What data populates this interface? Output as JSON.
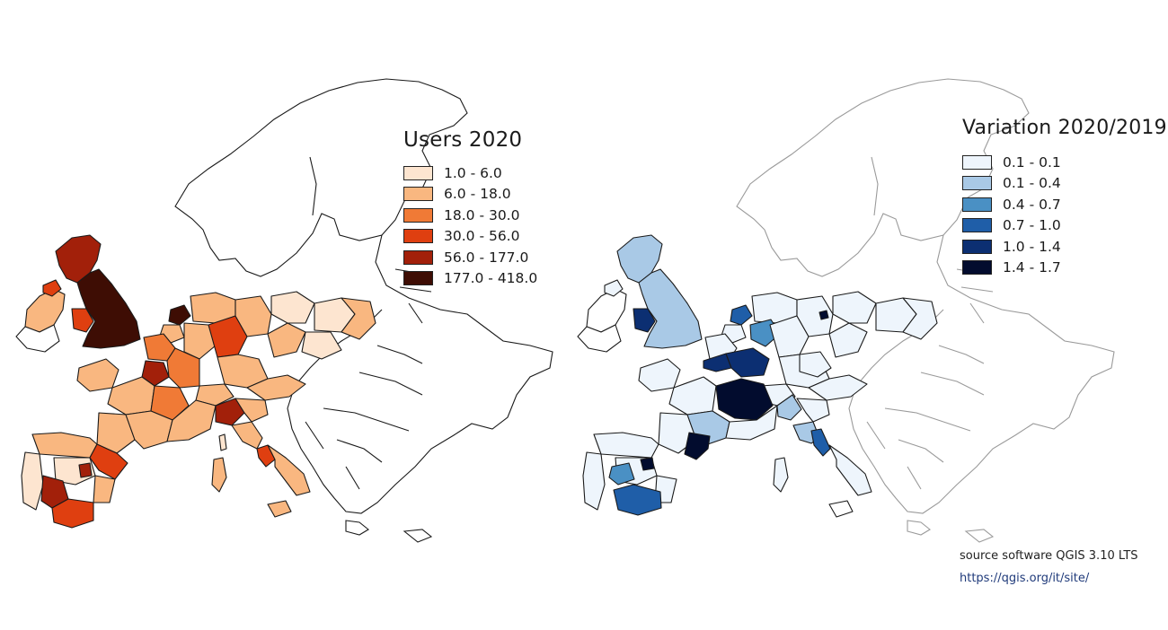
{
  "maps": [
    {
      "id": "users",
      "legend": {
        "title": "Users 2020",
        "classes": [
          {
            "label": "1.0 - 6.0",
            "color": "#fde5d0"
          },
          {
            "label": "6.0 - 18.0",
            "color": "#f9b780"
          },
          {
            "label": "18.0 - 30.0",
            "color": "#f07a36"
          },
          {
            "label": "30.0 - 56.0",
            "color": "#df3f10"
          },
          {
            "label": "56.0 - 177.0",
            "color": "#a2200a"
          },
          {
            "label": "177.0 - 418.0",
            "color": "#3e0d04"
          }
        ]
      }
    },
    {
      "id": "variation",
      "legend": {
        "title": "Variation 2020/2019",
        "classes": [
          {
            "label": "0.1 - 0.1",
            "color": "#eef5fc"
          },
          {
            "label": "0.1 - 0.4",
            "color": "#a9c9e6"
          },
          {
            "label": "0.4 - 0.7",
            "color": "#4a90c4"
          },
          {
            "label": "0.7 - 1.0",
            "color": "#1f5ea8"
          },
          {
            "label": "1.0 - 1.4",
            "color": "#0c2f72"
          },
          {
            "label": "1.4 - 1.7",
            "color": "#020c2e"
          }
        ]
      }
    }
  ],
  "credits": {
    "software": "source software QGIS 3.10 LTS",
    "url": "https://qgis.org/it/site/"
  },
  "colors": {
    "no_data": "#ffffff",
    "active_border": "#1a1a1a",
    "background_border": "#9a9a9a"
  }
}
